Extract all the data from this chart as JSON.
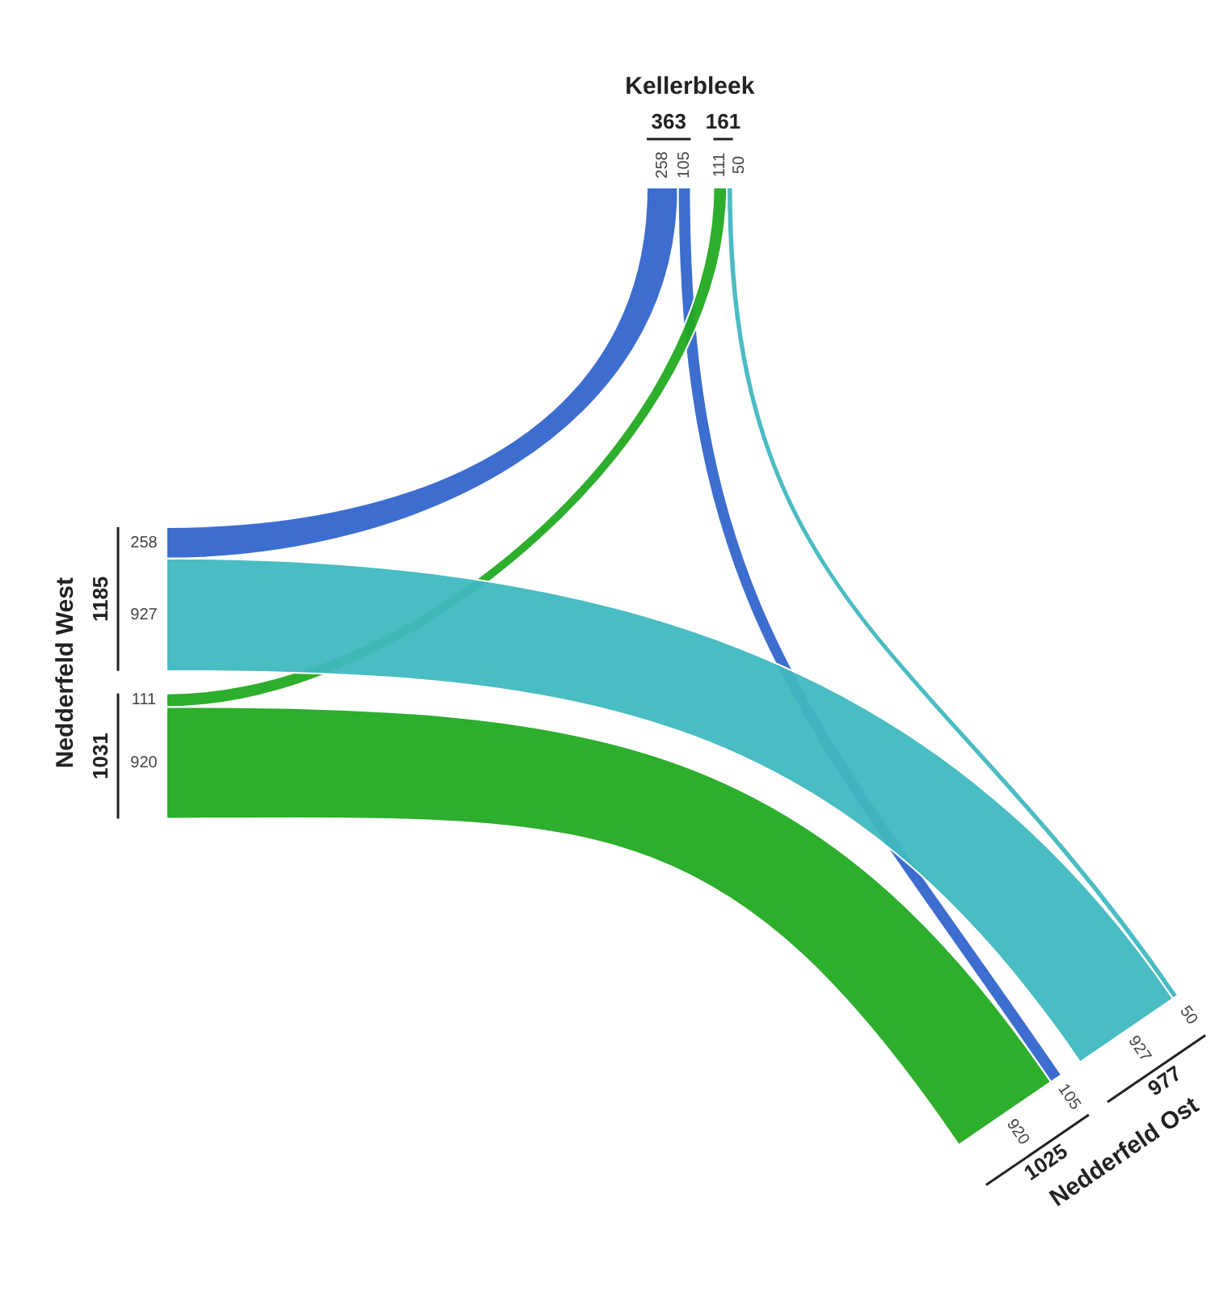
{
  "chart_data": {
    "type": "other",
    "categories": [
      "Kellerbleek",
      "Nedderfeld West",
      "Nedderfeld Ost"
    ],
    "series": [
      {
        "color": "#3366cc",
        "values": [
          null,
          258,
          105
        ],
        "value_labels": [
          null,
          "258",
          "105"
        ]
      },
      {
        "color": "#22aa22",
        "values": [
          111,
          null,
          920
        ],
        "value_labels": [
          "111",
          null,
          "920"
        ]
      },
      {
        "color": "#40b8c0",
        "values": [
          50,
          927,
          null
        ],
        "value_labels": [
          "50",
          "927",
          null
        ]
      }
    ],
    "data_labels": true,
    "annotations": [
      "258",
      "105",
      "111",
      "920",
      "50",
      "927"
    ],
    "totals": [
      [
        "363",
        "161"
      ],
      [
        "1185",
        "1031"
      ],
      [
        "1025",
        "977"
      ]
    ]
  }
}
